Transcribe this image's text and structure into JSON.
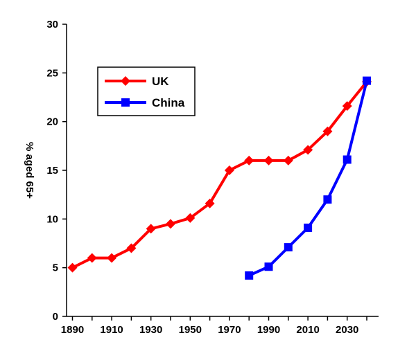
{
  "chart_data": {
    "type": "line",
    "title": "",
    "xlabel": "",
    "ylabel": "% aged 65+",
    "ylim": [
      0,
      30
    ],
    "xlim": [
      1887,
      2046
    ],
    "x_ticks": [
      1890,
      1910,
      1930,
      1950,
      1970,
      1990,
      2010,
      2030
    ],
    "y_ticks": [
      0,
      5,
      10,
      15,
      20,
      25,
      30
    ],
    "grid": false,
    "legend_position": "top-left",
    "series": [
      {
        "name": "UK",
        "color": "#ff0000",
        "marker": "diamond",
        "x": [
          1890,
          1900,
          1910,
          1920,
          1930,
          1940,
          1950,
          1960,
          1970,
          1980,
          1990,
          2000,
          2010,
          2020,
          2030,
          2040
        ],
        "y": [
          5.0,
          6.0,
          6.0,
          7.0,
          9.0,
          9.5,
          10.1,
          11.6,
          15.0,
          16.0,
          16.0,
          16.0,
          17.1,
          19.0,
          21.6,
          24.1
        ]
      },
      {
        "name": "China",
        "color": "#0000ff",
        "marker": "square",
        "x": [
          1980,
          1990,
          2000,
          2010,
          2020,
          2030,
          2040
        ],
        "y": [
          4.2,
          5.1,
          7.1,
          9.1,
          12.0,
          16.1,
          24.2
        ]
      }
    ]
  }
}
